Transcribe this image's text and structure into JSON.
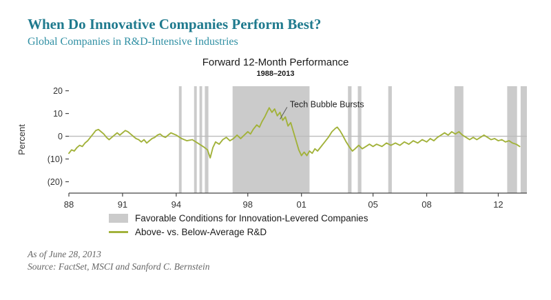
{
  "header": {
    "title": "When Do Innovative Companies Perform Best?",
    "subtitle": "Global Companies in R&D-Intensive Industries",
    "title_color": "#1f7a8e",
    "subtitle_color": "#2f8fa3"
  },
  "chart_data": {
    "type": "line",
    "title": "Forward 12-Month Performance",
    "subtitle": "1988–2013",
    "ylabel": "Percent",
    "xlabel": "",
    "ylim": [
      -25,
      22
    ],
    "xlim": [
      1988,
      2013.6
    ],
    "grid": "zero-line-only",
    "y_ticks": [
      {
        "value": 20,
        "label": "20"
      },
      {
        "value": 10,
        "label": "10"
      },
      {
        "value": 0,
        "label": "0"
      },
      {
        "value": -10,
        "label": "(10)"
      },
      {
        "value": -20,
        "label": "(20)"
      }
    ],
    "x_ticks": [
      {
        "value": 1988,
        "label": "88"
      },
      {
        "value": 1991,
        "label": "91"
      },
      {
        "value": 1994,
        "label": "94"
      },
      {
        "value": 1998,
        "label": "98"
      },
      {
        "value": 2001,
        "label": "01"
      },
      {
        "value": 2005,
        "label": "05"
      },
      {
        "value": 2008,
        "label": "08"
      },
      {
        "value": 2012,
        "label": "12"
      }
    ],
    "bands": [
      [
        1994.15,
        1994.3
      ],
      [
        1995.0,
        1995.15
      ],
      [
        1995.3,
        1995.45
      ],
      [
        1995.6,
        1995.8
      ],
      [
        1997.15,
        2001.45
      ],
      [
        2003.6,
        2003.8
      ],
      [
        2004.15,
        2004.35
      ],
      [
        2005.85,
        2006.05
      ],
      [
        2009.55,
        2010.05
      ],
      [
        2012.5,
        2013.05
      ],
      [
        2013.25,
        2013.6
      ]
    ],
    "bands_meaning": "Favorable Conditions for Innovation-Levered Companies",
    "series": [
      {
        "name": "Above- vs. Below-Average R&D",
        "points": [
          [
            1988.0,
            -7.5
          ],
          [
            1988.15,
            -6
          ],
          [
            1988.3,
            -6.5
          ],
          [
            1988.45,
            -5
          ],
          [
            1988.6,
            -4
          ],
          [
            1988.75,
            -4.5
          ],
          [
            1988.9,
            -3
          ],
          [
            1989.05,
            -2
          ],
          [
            1989.2,
            -0.5
          ],
          [
            1989.35,
            1
          ],
          [
            1989.5,
            2.5
          ],
          [
            1989.65,
            3
          ],
          [
            1989.8,
            2
          ],
          [
            1989.95,
            1
          ],
          [
            1990.1,
            -0.5
          ],
          [
            1990.25,
            -1.5
          ],
          [
            1990.4,
            -0.5
          ],
          [
            1990.55,
            0.5
          ],
          [
            1990.7,
            1.5
          ],
          [
            1990.85,
            0.5
          ],
          [
            1991.0,
            1.5
          ],
          [
            1991.15,
            2.5
          ],
          [
            1991.3,
            2
          ],
          [
            1991.45,
            1
          ],
          [
            1991.6,
            0
          ],
          [
            1991.75,
            -1
          ],
          [
            1991.9,
            -1.5
          ],
          [
            1992.05,
            -2.5
          ],
          [
            1992.2,
            -1.5
          ],
          [
            1992.35,
            -3
          ],
          [
            1992.5,
            -2
          ],
          [
            1992.65,
            -1
          ],
          [
            1992.8,
            -0.5
          ],
          [
            1992.95,
            0.5
          ],
          [
            1993.1,
            1
          ],
          [
            1993.25,
            0
          ],
          [
            1993.4,
            -0.5
          ],
          [
            1993.55,
            0.5
          ],
          [
            1993.7,
            1.5
          ],
          [
            1993.85,
            1
          ],
          [
            1994.0,
            0.5
          ],
          [
            1994.3,
            -1
          ],
          [
            1994.6,
            -2
          ],
          [
            1994.9,
            -1.5
          ],
          [
            1995.2,
            -3
          ],
          [
            1995.5,
            -4.5
          ],
          [
            1995.75,
            -6
          ],
          [
            1995.9,
            -9.5
          ],
          [
            1996.05,
            -5
          ],
          [
            1996.2,
            -2.5
          ],
          [
            1996.4,
            -3.5
          ],
          [
            1996.6,
            -1.5
          ],
          [
            1996.8,
            -0.5
          ],
          [
            1997.0,
            -2
          ],
          [
            1997.2,
            -1
          ],
          [
            1997.4,
            0.5
          ],
          [
            1997.6,
            -1
          ],
          [
            1997.8,
            0.5
          ],
          [
            1998.0,
            2
          ],
          [
            1998.15,
            1
          ],
          [
            1998.3,
            3
          ],
          [
            1998.5,
            5
          ],
          [
            1998.65,
            4
          ],
          [
            1998.8,
            6.5
          ],
          [
            1998.95,
            8.5
          ],
          [
            1999.1,
            11
          ],
          [
            1999.2,
            12.5
          ],
          [
            1999.35,
            10.5
          ],
          [
            1999.5,
            12
          ],
          [
            1999.65,
            9
          ],
          [
            1999.8,
            10.5
          ],
          [
            1999.95,
            7
          ],
          [
            2000.1,
            8.5
          ],
          [
            2000.25,
            4.5
          ],
          [
            2000.4,
            6
          ],
          [
            2000.55,
            2
          ],
          [
            2000.7,
            -2
          ],
          [
            2000.85,
            -6
          ],
          [
            2001.0,
            -8.5
          ],
          [
            2001.15,
            -7
          ],
          [
            2001.3,
            -8.5
          ],
          [
            2001.45,
            -6.5
          ],
          [
            2001.6,
            -7.5
          ],
          [
            2001.75,
            -5.5
          ],
          [
            2001.9,
            -6.5
          ],
          [
            2002.1,
            -4.5
          ],
          [
            2002.3,
            -2.5
          ],
          [
            2002.5,
            -0.5
          ],
          [
            2002.7,
            2
          ],
          [
            2002.9,
            3.5
          ],
          [
            2003.0,
            4
          ],
          [
            2003.15,
            2.5
          ],
          [
            2003.3,
            0.5
          ],
          [
            2003.5,
            -2.5
          ],
          [
            2003.7,
            -5
          ],
          [
            2003.85,
            -6.5
          ],
          [
            2004.0,
            -5.5
          ],
          [
            2004.2,
            -4
          ],
          [
            2004.4,
            -5.5
          ],
          [
            2004.6,
            -4.5
          ],
          [
            2004.8,
            -3.5
          ],
          [
            2005.0,
            -4.5
          ],
          [
            2005.2,
            -3.5
          ],
          [
            2005.5,
            -4.5
          ],
          [
            2005.75,
            -3
          ],
          [
            2006.0,
            -4
          ],
          [
            2006.25,
            -3
          ],
          [
            2006.5,
            -4
          ],
          [
            2006.75,
            -2.5
          ],
          [
            2007.0,
            -3.5
          ],
          [
            2007.25,
            -2
          ],
          [
            2007.5,
            -3
          ],
          [
            2007.75,
            -1.5
          ],
          [
            2008.0,
            -2.5
          ],
          [
            2008.2,
            -1
          ],
          [
            2008.4,
            -2
          ],
          [
            2008.6,
            -0.5
          ],
          [
            2008.8,
            0.5
          ],
          [
            2009.0,
            1.5
          ],
          [
            2009.2,
            0.5
          ],
          [
            2009.4,
            2
          ],
          [
            2009.6,
            1
          ],
          [
            2009.8,
            2
          ],
          [
            2010.0,
            0.5
          ],
          [
            2010.2,
            -0.5
          ],
          [
            2010.4,
            -1.5
          ],
          [
            2010.6,
            -0.5
          ],
          [
            2010.8,
            -1.5
          ],
          [
            2011.0,
            -0.5
          ],
          [
            2011.2,
            0.5
          ],
          [
            2011.4,
            -0.5
          ],
          [
            2011.6,
            -1.5
          ],
          [
            2011.8,
            -1
          ],
          [
            2012.0,
            -2
          ],
          [
            2012.2,
            -1.5
          ],
          [
            2012.4,
            -2.5
          ],
          [
            2012.6,
            -2
          ],
          [
            2012.8,
            -3
          ],
          [
            2013.0,
            -3.5
          ],
          [
            2013.2,
            -4.5
          ]
        ]
      }
    ],
    "annotation": {
      "text": "Tech Bubble Bursts",
      "x_year": 2000.35,
      "y_value": 14,
      "pointer": {
        "x_year": 1999.8,
        "y_value": 7.5
      }
    },
    "colors": {
      "line": "#a2b23a",
      "band": "#cbcbcb",
      "axis": "#444444",
      "zero_line": "#bcbcbc"
    }
  },
  "legend": {
    "items": [
      {
        "swatch": "band",
        "label": "Favorable Conditions for Innovation-Levered Companies"
      },
      {
        "swatch": "line",
        "label": "Above- vs. Below-Average R&D"
      }
    ]
  },
  "footer": {
    "as_of": "As of June 28, 2013",
    "source": "Source: FactSet, MSCI and Sanford C. Bernstein"
  }
}
